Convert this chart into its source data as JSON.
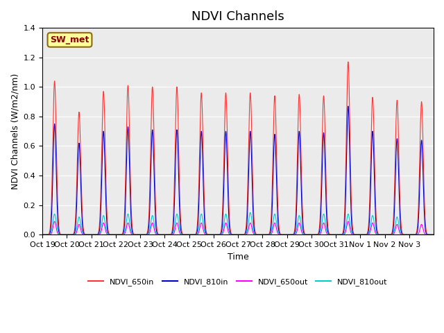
{
  "title": "NDVI Channels",
  "xlabel": "Time",
  "ylabel": "NDVI Channels (W/m2/nm)",
  "annotation": "SW_met",
  "ylim": [
    0.0,
    1.4
  ],
  "n_days": 16,
  "tick_labels": [
    "Oct 19",
    "Oct 20",
    "Oct 21",
    "Oct 22",
    "Oct 23",
    "Oct 24",
    "Oct 25",
    "Oct 26",
    "Oct 27",
    "Oct 28",
    "Oct 29",
    "Oct 30",
    "Oct 31",
    "Nov 1",
    "Nov 2",
    "Nov 3"
  ],
  "colors": {
    "NDVI_650in": "#FF3333",
    "NDVI_810in": "#0000CC",
    "NDVI_650out": "#FF00FF",
    "NDVI_810out": "#00CCCC"
  },
  "legend_labels": [
    "NDVI_650in",
    "NDVI_810in",
    "NDVI_650out",
    "NDVI_810out"
  ],
  "bg_color": "#EBEBEB",
  "title_fontsize": 13,
  "label_fontsize": 9,
  "tick_fontsize": 8,
  "peak_650in": [
    1.04,
    0.83,
    0.97,
    1.01,
    1.0,
    1.0,
    0.96,
    0.96,
    0.96,
    0.94,
    0.95,
    0.94,
    1.17,
    0.93,
    0.91,
    0.9
  ],
  "peak_810in": [
    0.75,
    0.62,
    0.7,
    0.73,
    0.71,
    0.71,
    0.7,
    0.7,
    0.7,
    0.68,
    0.7,
    0.69,
    0.87,
    0.7,
    0.65,
    0.64
  ],
  "peak_650out": [
    0.09,
    0.07,
    0.08,
    0.08,
    0.08,
    0.08,
    0.08,
    0.08,
    0.08,
    0.08,
    0.08,
    0.08,
    0.09,
    0.08,
    0.07,
    0.07
  ],
  "peak_810out": [
    0.14,
    0.12,
    0.13,
    0.14,
    0.13,
    0.14,
    0.14,
    0.14,
    0.15,
    0.14,
    0.13,
    0.14,
    0.14,
    0.13,
    0.12,
    0.0
  ]
}
